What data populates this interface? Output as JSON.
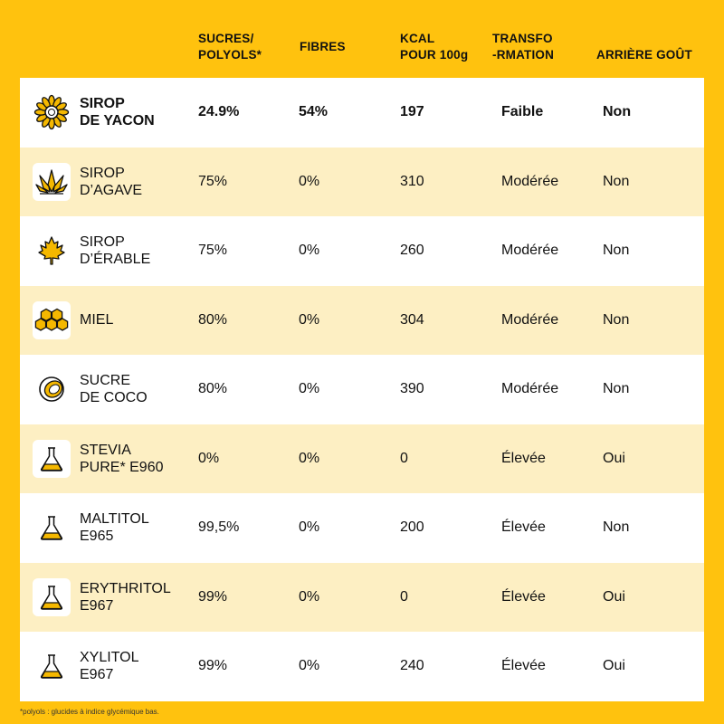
{
  "header": {
    "col_sugar": [
      "SUCRES/",
      "POLYOLS*"
    ],
    "col_fibers": [
      "FIBRES"
    ],
    "col_kcal": [
      "KCAL",
      "POUR 100g"
    ],
    "col_transfo": [
      "TRANSFO",
      "-RMATION"
    ],
    "col_aftertaste": [
      "ARRIÈRE GOÛT"
    ]
  },
  "rows": [
    {
      "name": [
        "SIROP",
        "DE YACON"
      ],
      "icon": "sunflower-icon",
      "sugar": "24.9%",
      "fibers": "54%",
      "kcal": "197",
      "transformation": "Faible",
      "aftertaste": "Non"
    },
    {
      "name": [
        "SIROP",
        "D’AGAVE"
      ],
      "icon": "agave-icon",
      "sugar": "75%",
      "fibers": "0%",
      "kcal": "310",
      "transformation": "Modérée",
      "aftertaste": "Non"
    },
    {
      "name": [
        "SIROP",
        "D’ÉRABLE"
      ],
      "icon": "maple-leaf-icon",
      "sugar": "75%",
      "fibers": "0%",
      "kcal": "260",
      "transformation": "Modérée",
      "aftertaste": "Non"
    },
    {
      "name": [
        "MIEL"
      ],
      "icon": "honeycomb-icon",
      "sugar": "80%",
      "fibers": "0%",
      "kcal": "304",
      "transformation": "Modérée",
      "aftertaste": "Non"
    },
    {
      "name": [
        "SUCRE",
        "DE COCO"
      ],
      "icon": "coconut-icon",
      "sugar": "80%",
      "fibers": "0%",
      "kcal": "390",
      "transformation": "Modérée",
      "aftertaste": "Non"
    },
    {
      "name": [
        "STEVIA",
        "PURE* E960"
      ],
      "icon": "flask-icon",
      "sugar": "0%",
      "fibers": "0%",
      "kcal": "0",
      "transformation": "Élevée",
      "aftertaste": "Oui"
    },
    {
      "name": [
        "MALTITOL",
        "E965"
      ],
      "icon": "flask-icon",
      "sugar": "99,5%",
      "fibers": "0%",
      "kcal": "200",
      "transformation": "Élevée",
      "aftertaste": "Non"
    },
    {
      "name": [
        "ERYTHRITOL",
        "E967"
      ],
      "icon": "flask-icon",
      "sugar": "99%",
      "fibers": "0%",
      "kcal": "0",
      "transformation": "Élevée",
      "aftertaste": "Oui"
    },
    {
      "name": [
        "XYLITOL",
        "E967"
      ],
      "icon": "flask-icon",
      "sugar": "99%",
      "fibers": "0%",
      "kcal": "240",
      "transformation": "Élevée",
      "aftertaste": "Oui"
    }
  ],
  "footnote": "*polyols : glucides à indice glycémique bas.",
  "colors": {
    "background": "#FFC20E",
    "row_white": "#FFFFFF",
    "row_cream": "#FDEFC3",
    "icon_yellow": "#F5B800",
    "text": "#111111"
  }
}
